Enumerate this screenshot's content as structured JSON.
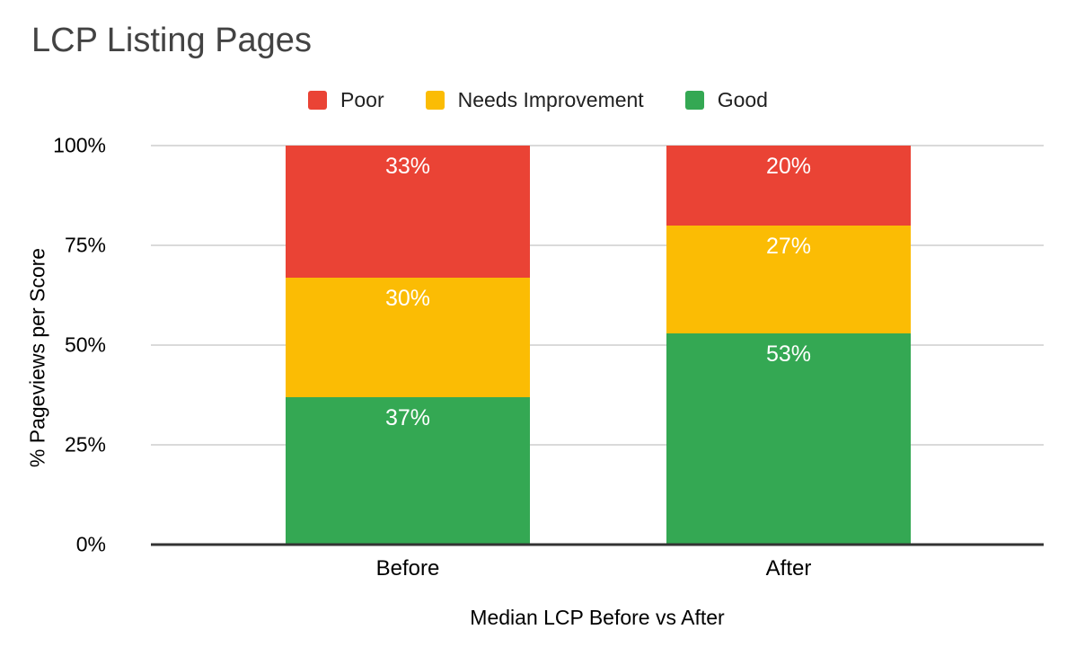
{
  "title": "LCP Listing Pages",
  "colors": {
    "poor": "#ea4335",
    "needs_improvement": "#fbbc04",
    "good": "#34a853",
    "grid": "#dadada",
    "axis_line": "#333333",
    "title_text": "#434343",
    "bar_label_text": "#ffffff",
    "axis_text": "#000000"
  },
  "legend": {
    "position": "top",
    "items": [
      {
        "label": "Poor",
        "color": "#ea4335"
      },
      {
        "label": "Needs Improvement",
        "color": "#fbbc04"
      },
      {
        "label": "Good",
        "color": "#34a853"
      }
    ]
  },
  "chart_data": {
    "type": "bar",
    "stacked": true,
    "title": "LCP Listing Pages",
    "xlabel": "Median LCP Before vs After",
    "ylabel": "% Pageviews per Score",
    "categories": [
      "Before",
      "After"
    ],
    "series": [
      {
        "name": "Poor",
        "color": "#ea4335",
        "values": [
          33,
          20
        ]
      },
      {
        "name": "Needs Improvement",
        "color": "#fbbc04",
        "values": [
          30,
          27
        ]
      },
      {
        "name": "Good",
        "color": "#34a853",
        "values": [
          37,
          53
        ]
      }
    ],
    "value_suffix": "%",
    "ylim": [
      0,
      100
    ],
    "yticks": [
      "0%",
      "25%",
      "50%",
      "75%",
      "100%"
    ],
    "grid": true,
    "legend_position": "top"
  }
}
